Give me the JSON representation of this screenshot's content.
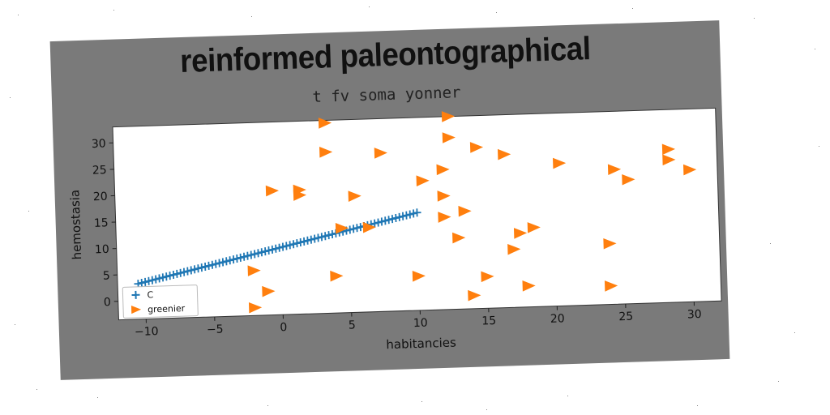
{
  "chart_data": {
    "type": "scatter",
    "title": "reinformed paleontographical",
    "subtitle": "t fv soma yonner",
    "xlabel": "habitancies",
    "ylabel": "hemostasia",
    "xlim": [
      -12,
      32
    ],
    "ylim": [
      -3.5,
      33
    ],
    "xticks": [
      -10,
      -5,
      0,
      5,
      10,
      15,
      20,
      25,
      30
    ],
    "yticks": [
      0,
      5,
      10,
      15,
      20,
      25,
      30
    ],
    "grid": false,
    "legend_position": "lower-left",
    "series": [
      {
        "name": "C",
        "marker": "plus",
        "connected": true,
        "color": "#1f77b4",
        "x_start": -10.5,
        "x_end": 10,
        "y_start": 3.2,
        "y_end": 15,
        "n_points": 80
      },
      {
        "name": "greenier",
        "marker": "triangle-right",
        "color": "#ff7f0e",
        "points": [
          [
            3.5,
            32.5
          ],
          [
            12.5,
            33
          ],
          [
            12.5,
            29
          ],
          [
            3.5,
            27
          ],
          [
            7.5,
            26.5
          ],
          [
            14.5,
            27
          ],
          [
            16.5,
            25.5
          ],
          [
            28.5,
            25.5
          ],
          [
            28.5,
            23.5
          ],
          [
            20.5,
            23.5
          ],
          [
            12,
            23
          ],
          [
            24.5,
            22
          ],
          [
            30,
            21.5
          ],
          [
            10.5,
            21
          ],
          [
            -0.5,
            20
          ],
          [
            1.5,
            20
          ],
          [
            1.5,
            19
          ],
          [
            25.5,
            20
          ],
          [
            5.5,
            18.5
          ],
          [
            12,
            18
          ],
          [
            13.5,
            15
          ],
          [
            12,
            14
          ],
          [
            4.5,
            12.5
          ],
          [
            6.5,
            12.5
          ],
          [
            18.5,
            11.5
          ],
          [
            17.5,
            10.5
          ],
          [
            13,
            10
          ],
          [
            24,
            8
          ],
          [
            17,
            7.5
          ],
          [
            -2,
            5
          ],
          [
            4,
            3.5
          ],
          [
            10,
            3
          ],
          [
            15,
            2.5
          ],
          [
            -1,
            1
          ],
          [
            18,
            0.5
          ],
          [
            24,
            0
          ],
          [
            14,
            -1
          ],
          [
            -2,
            -2
          ]
        ]
      }
    ]
  }
}
